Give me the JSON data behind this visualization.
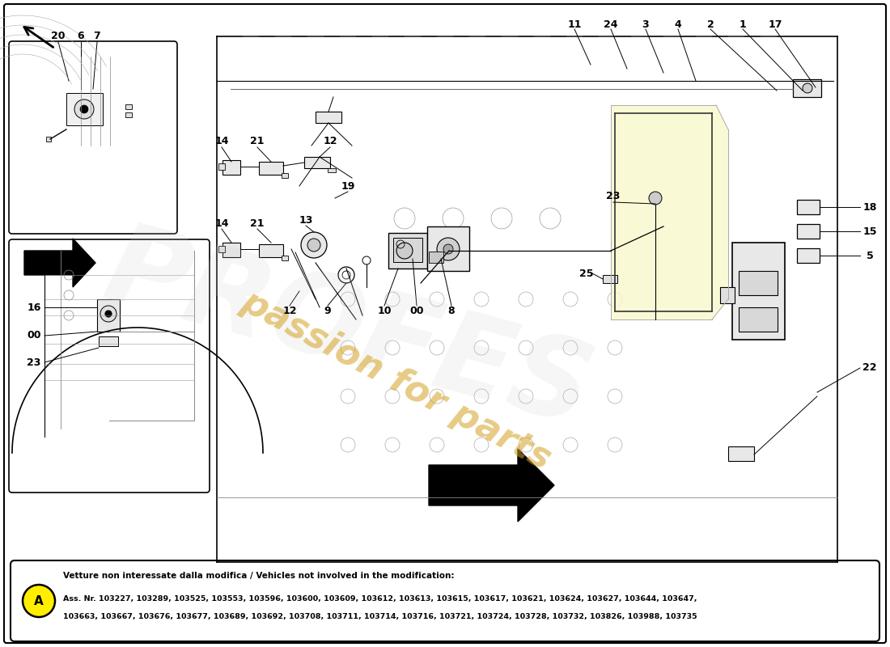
{
  "background_color": "#ffffff",
  "footnote_bold_text": "Vetture non interessate dalla modifica / Vehicles not involved in the modification:",
  "footnote_line1": "Ass. Nr. 103227, 103289, 103525, 103553, 103596, 103600, 103609, 103612, 103613, 103615, 103617, 103621, 103624, 103627, 103644, 103647,",
  "footnote_line2": "103663, 103667, 103676, 103677, 103689, 103692, 103708, 103711, 103714, 103716, 103721, 103724, 103728, 103732, 103826, 103988, 103735",
  "watermark_color": "#d4a020",
  "watermark2_color": "#cccccc"
}
